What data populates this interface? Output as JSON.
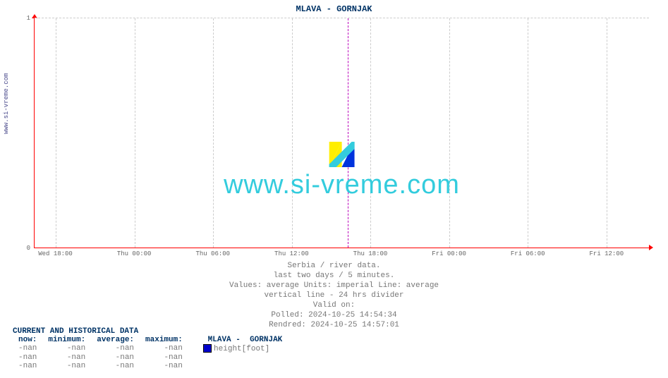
{
  "title": "MLAVA -  GORNJAK",
  "vlabel": "www.si-vreme.com",
  "watermark_text": "www.si-vreme.com",
  "chart": {
    "type": "line",
    "background_color": "#ffffff",
    "axis_color": "#ff0000",
    "grid_color": "#cccccc",
    "divider_color": "#bb00bb",
    "ylim": [
      0,
      1
    ],
    "yticks_pct": [
      0,
      100
    ],
    "ytick_labels": [
      "0",
      "1"
    ],
    "xticks_pct": [
      3.5,
      16.3,
      29.1,
      41.9,
      54.7,
      67.5,
      80.3,
      93.1
    ],
    "xtick_labels": [
      "Wed 18:00",
      "Thu 00:00",
      "Thu 06:00",
      "Thu 12:00",
      "Thu 18:00",
      "Fri 00:00",
      "Fri 06:00",
      "Fri 12:00"
    ],
    "divider24_pct": 51.0,
    "title_fontsize": 12,
    "tick_fontsize": 9
  },
  "caption": {
    "l1": "Serbia / river data.",
    "l2": "last two days / 5 minutes.",
    "l3": "Values: average  Units: imperial  Line: average",
    "l4": "vertical line - 24 hrs  divider",
    "l5": "Valid on:",
    "l6": "Polled: 2024-10-25 14:54:34",
    "l7": "Rendred: 2024-10-25 14:57:01"
  },
  "table": {
    "header": "CURRENT AND HISTORICAL DATA",
    "columns": [
      "now:",
      "minimum:",
      "average:",
      "maximum:"
    ],
    "series_label": "MLAVA -  GORNJAK",
    "unit_label": "height[foot]",
    "legend_color": "#0000cc",
    "rows": [
      [
        "-nan",
        "-nan",
        "-nan",
        "-nan"
      ],
      [
        "-nan",
        "-nan",
        "-nan",
        "-nan"
      ],
      [
        "-nan",
        "-nan",
        "-nan",
        "-nan"
      ]
    ]
  }
}
